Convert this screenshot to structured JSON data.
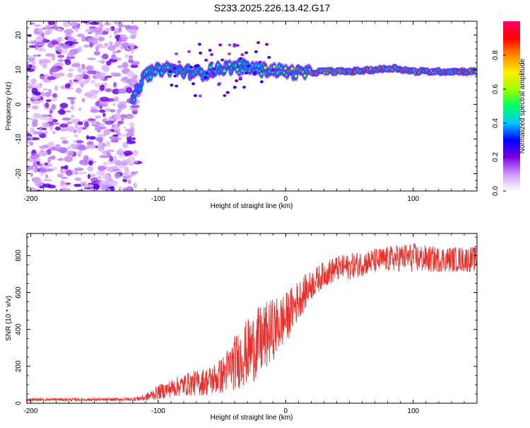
{
  "title": "S233.2025.226.13.42.G17",
  "chart_data": [
    {
      "type": "heatmap",
      "name": "spectrogram",
      "xlabel": "Height of straight line (km)",
      "ylabel": "Frequency (Hz)",
      "xlim": [
        -203,
        150
      ],
      "ylim": [
        -25,
        24
      ],
      "x_ticks": [
        -200,
        -100,
        0,
        100
      ],
      "x_tick_labels": [
        "-200",
        "-100",
        "0",
        "100"
      ],
      "y_ticks": [
        -20,
        -10,
        0,
        10,
        20
      ],
      "y_tick_labels": [
        "-20",
        "-10",
        "0",
        "10",
        "20"
      ],
      "colorbar": {
        "label": "Normalized spectral amplitude",
        "range": [
          0,
          1
        ],
        "ticks": [
          0.0,
          0.2,
          0.4,
          0.6,
          0.8
        ],
        "tick_labels": [
          "0.0",
          "0.2",
          "0.4",
          "0.6",
          "0.8"
        ],
        "colormap": [
          "#ffffff",
          "#cc99ff",
          "#7a00e0",
          "#0000ff",
          "#00c8ff",
          "#00ff66",
          "#a0ff00",
          "#ffee00",
          "#ff8800",
          "#ff0000",
          "#ff0066"
        ]
      },
      "noise_region_x": [
        -203,
        -116
      ],
      "ridge": [
        {
          "x": -120,
          "f": 1.5,
          "amp": 0.45
        },
        {
          "x": -110,
          "f": 8.5,
          "amp": 0.5
        },
        {
          "x": -95,
          "f": 10.5,
          "amp": 0.55
        },
        {
          "x": -80,
          "f": 9.5,
          "amp": 0.5
        },
        {
          "x": -65,
          "f": 9.0,
          "amp": 0.5
        },
        {
          "x": -50,
          "f": 10.5,
          "amp": 0.55
        },
        {
          "x": -35,
          "f": 11.0,
          "amp": 0.5
        },
        {
          "x": -20,
          "f": 10.0,
          "amp": 0.55
        },
        {
          "x": -10,
          "f": 10.0,
          "amp": 0.6
        },
        {
          "x": 0,
          "f": 9.5,
          "amp": 0.7
        },
        {
          "x": 15,
          "f": 9.0,
          "amp": 0.75
        },
        {
          "x": 30,
          "f": 9.5,
          "amp": 0.85
        },
        {
          "x": 50,
          "f": 9.5,
          "amp": 0.85
        },
        {
          "x": 70,
          "f": 10.0,
          "amp": 0.9
        },
        {
          "x": 85,
          "f": 10.5,
          "amp": 0.85
        },
        {
          "x": 100,
          "f": 9.5,
          "amp": 0.9
        },
        {
          "x": 125,
          "f": 9.5,
          "amp": 0.88
        },
        {
          "x": 150,
          "f": 9.5,
          "amp": 0.9
        }
      ]
    },
    {
      "type": "line",
      "name": "snr",
      "xlabel": "Height of straight line (km)",
      "ylabel": "SNR (10 * v/v)",
      "xlim": [
        -203,
        150
      ],
      "ylim": [
        0,
        920
      ],
      "x_ticks": [
        -200,
        -100,
        0,
        100
      ],
      "x_tick_labels": [
        "-200",
        "-100",
        "0",
        "100"
      ],
      "y_ticks": [
        0,
        200,
        400,
        600,
        800
      ],
      "y_tick_labels": [
        "0",
        "200",
        "400",
        "600",
        "800"
      ],
      "color": "#e8302c",
      "series": [
        {
          "name": "SNR",
          "x": [
            -203,
            -180,
            -160,
            -140,
            -120,
            -110,
            -100,
            -90,
            -80,
            -70,
            -60,
            -50,
            -40,
            -30,
            -20,
            -10,
            0,
            10,
            20,
            30,
            40,
            50,
            60,
            70,
            80,
            90,
            100,
            110,
            120,
            130,
            140,
            150
          ],
          "y": [
            20,
            20,
            20,
            20,
            22,
            30,
            60,
            80,
            100,
            110,
            120,
            150,
            220,
            280,
            330,
            400,
            460,
            560,
            640,
            700,
            730,
            740,
            760,
            770,
            780,
            790,
            790,
            780,
            780,
            780,
            780,
            780
          ],
          "noise": [
            8,
            8,
            8,
            8,
            10,
            20,
            40,
            50,
            60,
            70,
            80,
            100,
            150,
            180,
            200,
            170,
            140,
            110,
            80,
            70,
            70,
            70,
            70,
            70,
            70,
            75,
            80,
            75,
            70,
            70,
            70,
            70
          ]
        }
      ]
    }
  ]
}
